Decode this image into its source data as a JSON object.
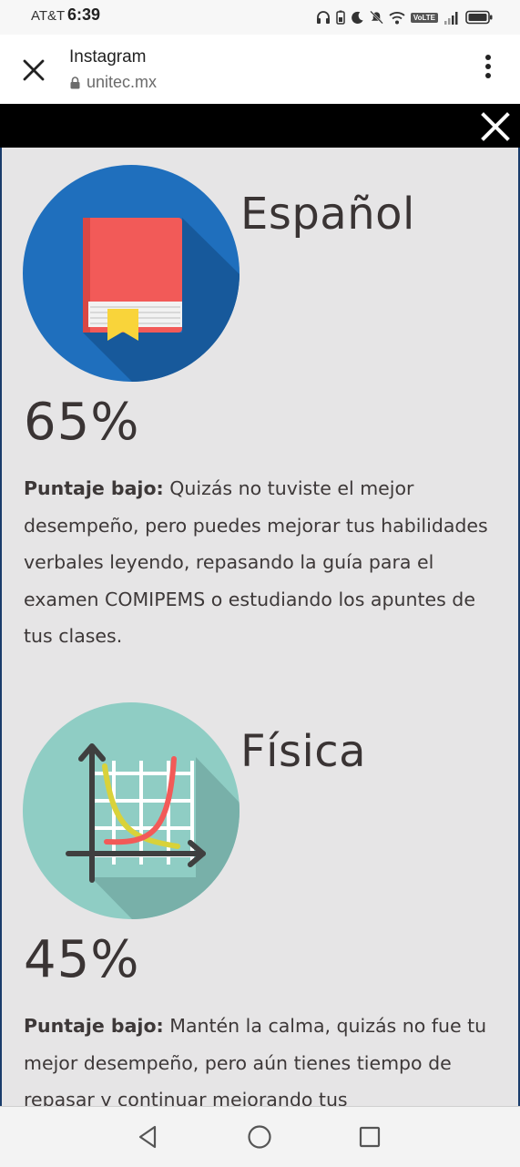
{
  "status_bar": {
    "carrier": "AT&T",
    "time": "6:39",
    "volte": "VoLTE",
    "icons": [
      "headphones-icon",
      "battery-saver-icon",
      "moon-icon",
      "mute-icon",
      "wifi-icon",
      "volte-icon",
      "signal-icon",
      "battery-icon"
    ]
  },
  "browser": {
    "title": "Instagram",
    "url": "unitec.mx",
    "close_icon": "close-icon",
    "lock_icon": "lock-icon",
    "menu_icon": "more-vert-icon"
  },
  "modal": {
    "close_icon": "close-icon",
    "subjects": [
      {
        "name": "Español",
        "icon": "book-icon",
        "score": "65%",
        "label": "Puntaje bajo:",
        "text": "Quizás no tuviste el mejor desempeño, pero puedes mejorar tus habilidades verbales leyendo, repasando la guía para el examen COMIPEMS o estudiando los apuntes de tus clases."
      },
      {
        "name": "Física",
        "icon": "graph-icon",
        "score": "45%",
        "label": "Puntaje bajo:",
        "text": "Mantén la calma, quizás no fue tu mejor desempeño, pero aún tienes tiempo de repasar y continuar mejorando tus"
      }
    ]
  },
  "nav": {
    "back_icon": "back-icon",
    "home_icon": "home-icon",
    "recents_icon": "recents-icon"
  },
  "colors": {
    "modal_bg": "#e6e5e6",
    "text": "#3a3434",
    "spanish_circle": "#1f6fbd",
    "book_red": "#f25a58",
    "physics_circle": "#8fcdc4"
  }
}
